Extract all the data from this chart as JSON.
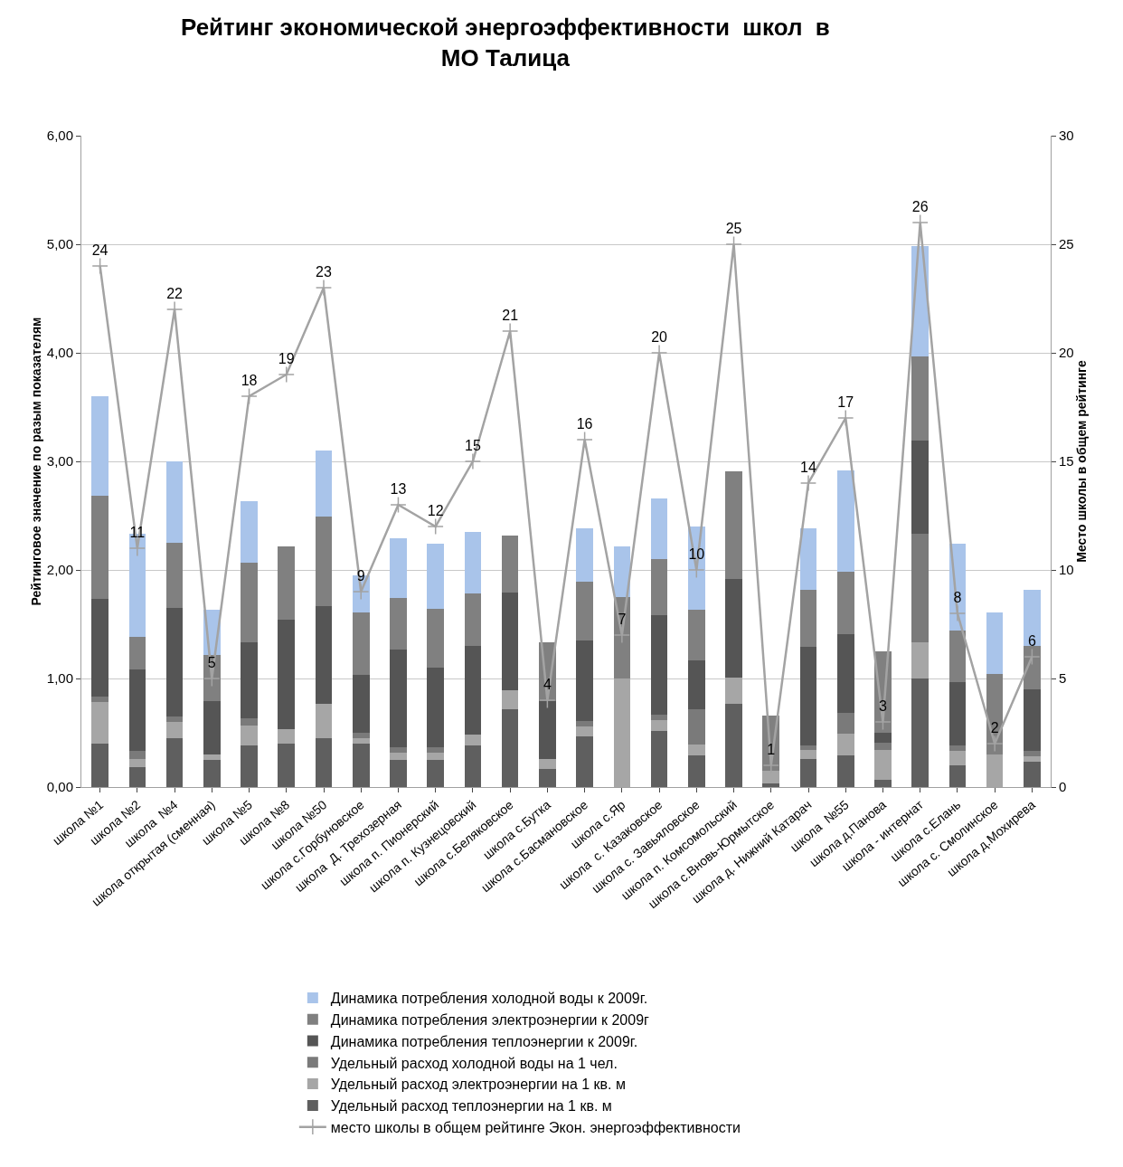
{
  "chart_data": {
    "type": "bar",
    "stacked": true,
    "title": "Рейтинг экономической энергоэффективности  школ  в\nМО Талица",
    "ylabel": "Рейтинговое значение по разым показателям",
    "y2label": "Место школы в общем рейтинге",
    "categories": [
      "школа №1",
      "школа №2",
      "школа  №4",
      "школа открытая (сменная)",
      "школа №5",
      "школа №8",
      "школа №50",
      "школа с.Горбуновское",
      "школа  Д. Трехозерная",
      "школа п. Пионерский",
      "школа п. Кузнецовский",
      "школа с.Беляковское",
      "школа с.Бутка",
      "школа с.Басмановское",
      "школа с.Яр",
      "школа  с. Казаковское",
      "школа с. Завьяловское",
      "школа п. Комсомольский",
      "школа с.Вновь-Юрмытское",
      "школа д. Нижний Катарач",
      "школа  №55",
      "школа д.Панова",
      "школа - интернат",
      "школа с.Елань",
      "школа с. Смолинское",
      "школа д.Мохирева"
    ],
    "series": [
      {
        "name": "Удельный расход теплоэнергии на 1 кв. м",
        "color": "#5f5f5f",
        "values": [
          0.4,
          0.18,
          0.45,
          0.25,
          0.38,
          0.4,
          0.45,
          0.4,
          0.25,
          0.25,
          0.38,
          0.72,
          0.17,
          0.47,
          0,
          0.52,
          0.29,
          0.77,
          0.03,
          0.26,
          0.29,
          0.07,
          1.0,
          0.2,
          0,
          0.23
        ]
      },
      {
        "name": "Удельный расход электроэнергии на 1 кв. м",
        "color": "#a6a6a6",
        "values": [
          0.38,
          0.08,
          0.15,
          0.05,
          0.19,
          0.13,
          0.32,
          0.05,
          0.07,
          0.07,
          0.1,
          0.17,
          0.09,
          0.09,
          1.0,
          0.1,
          0.1,
          0.24,
          0.12,
          0.08,
          0.2,
          0.27,
          0.33,
          0.13,
          0.3,
          0.05
        ]
      },
      {
        "name": "Удельный расход холодной воды на 1 чел.",
        "color": "#7a7a7a",
        "values": [
          0.05,
          0.07,
          0.05,
          0,
          0.06,
          0,
          0,
          0.05,
          0.05,
          0.05,
          0,
          0,
          0,
          0.05,
          0,
          0.05,
          0.33,
          0,
          0,
          0.04,
          0.19,
          0.07,
          1.0,
          0.05,
          0,
          0.05
        ]
      },
      {
        "name": "Динамика потребления теплоэнергии к 2009г.",
        "color": "#555555",
        "values": [
          0.9,
          0.75,
          1.0,
          0.49,
          0.7,
          1.01,
          0.9,
          0.53,
          0.9,
          0.73,
          0.82,
          0.9,
          0.53,
          0.74,
          0,
          0.91,
          0.45,
          0.91,
          0,
          0.91,
          0.73,
          0.09,
          0.86,
          0.59,
          0,
          0.57
        ]
      },
      {
        "name": "Динамика потребления электроэнергии к 2009г",
        "color": "#808080",
        "values": [
          0.95,
          0.3,
          0.6,
          0.43,
          0.74,
          0.68,
          0.82,
          0.58,
          0.47,
          0.54,
          0.48,
          0.53,
          0.54,
          0.54,
          0.75,
          0.52,
          0.46,
          0.99,
          0.51,
          0.53,
          0.57,
          0.75,
          0.78,
          0.47,
          0.74,
          0.4
        ]
      },
      {
        "name": "Динамика потребления холодной воды к 2009г.",
        "color": "#a9c4ea",
        "values": [
          0.92,
          0.95,
          0.75,
          0.41,
          0.56,
          0,
          0.61,
          0.34,
          0.55,
          0.6,
          0.57,
          0,
          0,
          0.49,
          0.47,
          0.56,
          0.77,
          0,
          0,
          0.56,
          0.94,
          0,
          1.01,
          0.8,
          0.57,
          0.52
        ]
      },
      {
        "name": "место школы в общем рейтинге Экон. энергоэффективности",
        "type": "line",
        "axis": "y2",
        "color": "#a3a3a3",
        "marker": "cross",
        "line_style": "solid",
        "values": [
          24,
          11,
          22,
          5,
          18,
          19,
          23,
          9,
          13,
          12,
          15,
          21,
          4,
          16,
          7,
          20,
          10,
          25,
          1,
          14,
          17,
          3,
          26,
          8,
          2,
          6
        ],
        "value_labels": [
          "24",
          "11",
          "22",
          "5",
          "18",
          "19",
          "23",
          "9",
          "13",
          "12",
          "15",
          "21",
          "4",
          "16",
          "7",
          "20",
          "10",
          "25",
          "1",
          "14",
          "17",
          "3",
          "26",
          "8",
          "2",
          "6"
        ]
      }
    ],
    "ylim": [
      0,
      6
    ],
    "yticks": [
      {
        "value": 0,
        "label": "0,00"
      },
      {
        "value": 1,
        "label": "1,00"
      },
      {
        "value": 2,
        "label": "2,00"
      },
      {
        "value": 3,
        "label": "3,00"
      },
      {
        "value": 4,
        "label": "4,00"
      },
      {
        "value": 5,
        "label": "5,00"
      },
      {
        "value": 6,
        "label": "6,00"
      }
    ],
    "y2lim": [
      0,
      30
    ],
    "y2ticks": [
      0,
      5,
      10,
      15,
      20,
      25,
      30
    ],
    "grid": "y",
    "legend": "bottom"
  }
}
